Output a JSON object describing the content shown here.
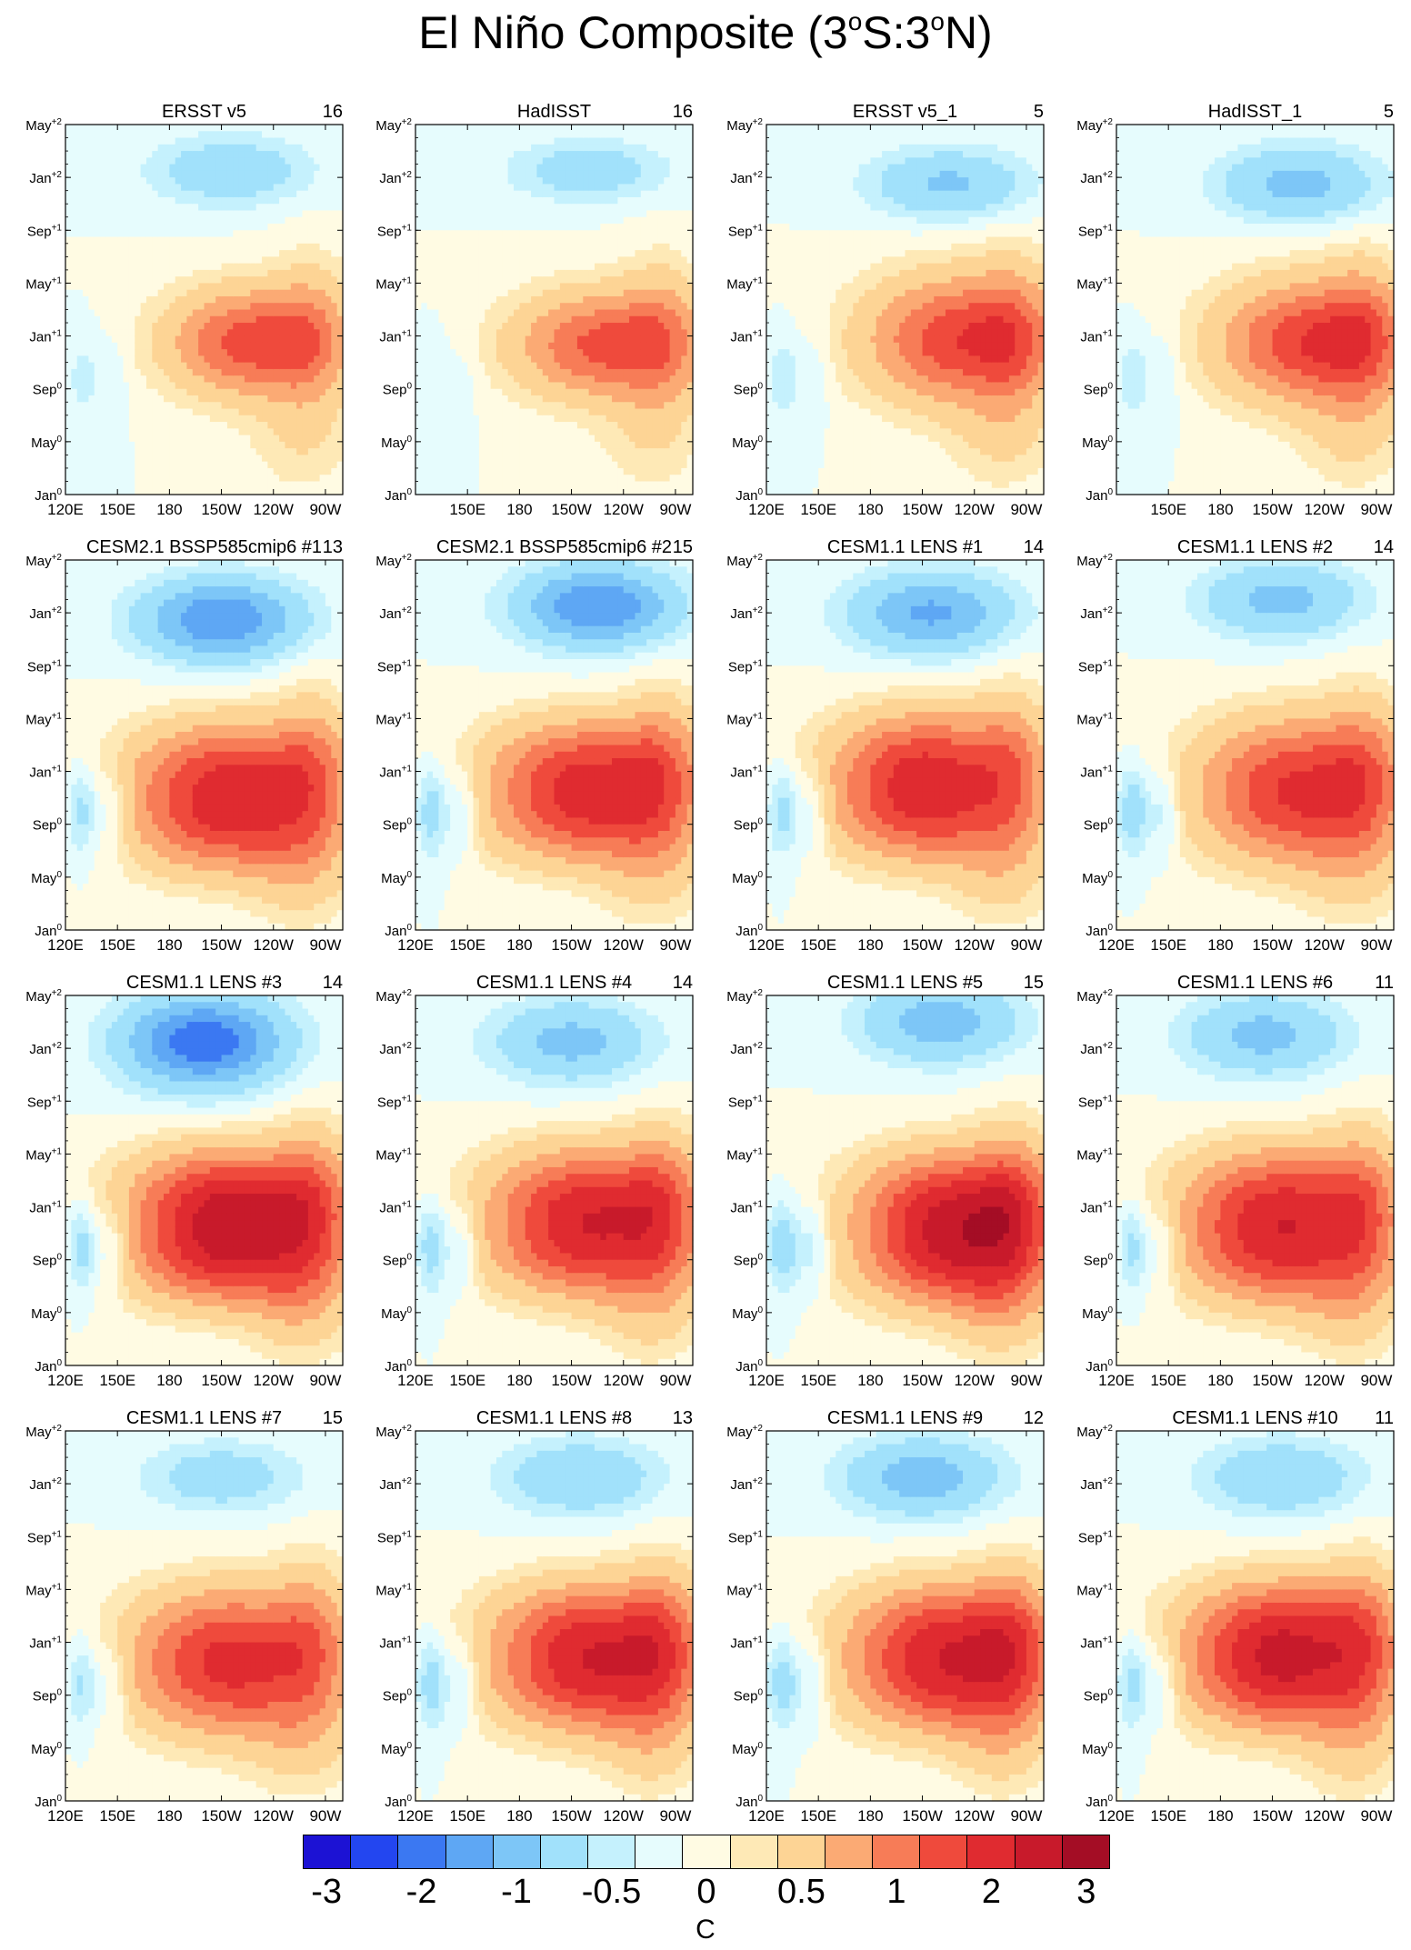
{
  "title_parts": {
    "prefix": "El Niño Composite (3",
    "deg1": "o",
    "mid": "S:3",
    "deg2": "o",
    "suffix": "N)"
  },
  "chart_data": {
    "type": "heatmap",
    "title": "El Niño Composite (3°S:3°N)",
    "units": "C",
    "x_axis": {
      "variable": "longitude",
      "range_deg_east": [
        120,
        280
      ],
      "ticks": [
        {
          "label": "120E",
          "lon": 120
        },
        {
          "label": "150E",
          "lon": 150
        },
        {
          "label": "180",
          "lon": 180
        },
        {
          "label": "150W",
          "lon": 210
        },
        {
          "label": "120W",
          "lon": 240
        },
        {
          "label": "90W",
          "lon": 270
        }
      ]
    },
    "y_axis": {
      "variable": "time",
      "range_months": [
        0,
        28
      ],
      "ticks": [
        {
          "label": "Jan",
          "sup": "0",
          "month": 0
        },
        {
          "label": "May",
          "sup": "0",
          "month": 4
        },
        {
          "label": "Sep",
          "sup": "0",
          "month": 8
        },
        {
          "label": "Jan",
          "sup": "+1",
          "month": 12
        },
        {
          "label": "May",
          "sup": "+1",
          "month": 16
        },
        {
          "label": "Sep",
          "sup": "+1",
          "month": 20
        },
        {
          "label": "Jan",
          "sup": "+2",
          "month": 24
        },
        {
          "label": "May",
          "sup": "+2",
          "month": 28
        }
      ]
    },
    "colorbar": {
      "colors": [
        "#1c12d4",
        "#2346f0",
        "#3b78f2",
        "#5ea7f4",
        "#7dc6f7",
        "#a1e1fb",
        "#c5f1fd",
        "#e6fcfd",
        "#fffbe3",
        "#fee9b6",
        "#fdd495",
        "#fbaa74",
        "#f77c57",
        "#ef4a3c",
        "#e02b30",
        "#c81a2b",
        "#a40d25"
      ],
      "labels": [
        {
          "text": "-3",
          "boundary": 1
        },
        {
          "text": "-2",
          "boundary": 3
        },
        {
          "text": "-1",
          "boundary": 5
        },
        {
          "text": "-0.5",
          "boundary": 7
        },
        {
          "text": "0",
          "boundary": 9
        },
        {
          "text": "0.5",
          "boundary": 11
        },
        {
          "text": "1",
          "boundary": 13
        },
        {
          "text": "2",
          "boundary": 15
        },
        {
          "text": "3",
          "boundary": 17
        }
      ]
    },
    "panels": [
      {
        "name": "ERSST v5",
        "count": "16",
        "peak": 2.3,
        "lon_center": 228,
        "month_center": 11.5,
        "lon_width": 48,
        "month_width": 4.0,
        "cold_peak": -0.9,
        "cold_lon": 215,
        "cold_month": 24.5,
        "cold_extent": 2.6,
        "west_strength": 0.4,
        "sharp": 1.0
      },
      {
        "name": "HadISST",
        "count": "16",
        "peak": 2.2,
        "lon_center": 230,
        "month_center": 11.3,
        "lon_width": 52,
        "month_width": 4.0,
        "cold_peak": -0.8,
        "cold_lon": 220,
        "cold_month": 24.5,
        "cold_extent": 2.3,
        "west_strength": 0.3,
        "sharp": 1.0
      },
      {
        "name": "ERSST v5_1",
        "count": "5",
        "peak": 2.4,
        "lon_center": 232,
        "month_center": 11.7,
        "lon_width": 54,
        "month_width": 4.8,
        "cold_peak": -1.1,
        "cold_lon": 225,
        "cold_month": 23.5,
        "cold_extent": 2.6,
        "west_strength": 0.5,
        "sharp": 1.0
      },
      {
        "name": "HadISST_1",
        "count": "5",
        "peak": 2.5,
        "lon_center": 234,
        "month_center": 11.5,
        "lon_width": 54,
        "month_width": 4.6,
        "cold_peak": -1.2,
        "cold_lon": 225,
        "cold_month": 23.5,
        "cold_extent": 2.8,
        "west_strength": 0.5,
        "sharp": 1.0
      },
      {
        "name": "CESM2.1 BSSP585cmip6 #1",
        "count": "13",
        "peak": 2.9,
        "lon_center": 215,
        "month_center": 10.0,
        "lon_width": 58,
        "month_width": 5.4,
        "cold_peak": -2.0,
        "cold_lon": 210,
        "cold_month": 23.5,
        "cold_extent": 3.0,
        "west_strength": 1.0,
        "sharp": 1.2
      },
      {
        "name": "CESM2.1 BSSP585cmip6 #2",
        "count": "15",
        "peak": 2.8,
        "lon_center": 220,
        "month_center": 10.5,
        "lon_width": 58,
        "month_width": 5.2,
        "cold_peak": -2.0,
        "cold_lon": 225,
        "cold_month": 24.5,
        "cold_extent": 3.0,
        "west_strength": 1.0,
        "sharp": 1.2
      },
      {
        "name": "CESM1.1 LENS #1",
        "count": "14",
        "peak": 2.9,
        "lon_center": 212,
        "month_center": 10.8,
        "lon_width": 55,
        "month_width": 5.4,
        "cold_peak": -1.6,
        "cold_lon": 215,
        "cold_month": 24.0,
        "cold_extent": 3.0,
        "west_strength": 1.0,
        "sharp": 1.2
      },
      {
        "name": "CESM1.1 LENS #2",
        "count": "14",
        "peak": 2.6,
        "lon_center": 225,
        "month_center": 10.5,
        "lon_width": 58,
        "month_width": 5.4,
        "cold_peak": -1.2,
        "cold_lon": 215,
        "cold_month": 25.0,
        "cold_extent": 2.8,
        "west_strength": 1.0,
        "sharp": 1.1
      },
      {
        "name": "CESM1.1 LENS #3",
        "count": "14",
        "peak": 3.4,
        "lon_center": 215,
        "month_center": 10.5,
        "lon_width": 58,
        "month_width": 5.6,
        "cold_peak": -2.4,
        "cold_lon": 200,
        "cold_month": 24.5,
        "cold_extent": 3.4,
        "west_strength": 1.1,
        "sharp": 1.3
      },
      {
        "name": "CESM1.1 LENS #4",
        "count": "14",
        "peak": 3.0,
        "lon_center": 220,
        "month_center": 10.8,
        "lon_width": 58,
        "month_width": 5.4,
        "cold_peak": -1.2,
        "cold_lon": 210,
        "cold_month": 24.5,
        "cold_extent": 3.0,
        "west_strength": 1.0,
        "sharp": 1.2
      },
      {
        "name": "CESM1.1 LENS #5",
        "count": "15",
        "peak": 3.3,
        "lon_center": 228,
        "month_center": 10.3,
        "lon_width": 55,
        "month_width": 5.6,
        "cold_peak": -1.3,
        "cold_lon": 220,
        "cold_month": 26.0,
        "cold_extent": 3.0,
        "west_strength": 1.0,
        "sharp": 1.2
      },
      {
        "name": "CESM1.1 LENS #6",
        "count": "11",
        "peak": 3.0,
        "lon_center": 215,
        "month_center": 10.5,
        "lon_width": 58,
        "month_width": 5.6,
        "cold_peak": -1.2,
        "cold_lon": 205,
        "cold_month": 25.0,
        "cold_extent": 3.0,
        "west_strength": 1.0,
        "sharp": 1.2
      },
      {
        "name": "CESM1.1 LENS #7",
        "count": "15",
        "peak": 2.7,
        "lon_center": 215,
        "month_center": 10.5,
        "lon_width": 58,
        "month_width": 5.4,
        "cold_peak": -0.8,
        "cold_lon": 210,
        "cold_month": 24.5,
        "cold_extent": 2.6,
        "west_strength": 0.9,
        "sharp": 1.1
      },
      {
        "name": "CESM1.1 LENS #8",
        "count": "13",
        "peak": 3.0,
        "lon_center": 222,
        "month_center": 10.8,
        "lon_width": 58,
        "month_width": 5.4,
        "cold_peak": -1.0,
        "cold_lon": 215,
        "cold_month": 24.5,
        "cold_extent": 2.8,
        "west_strength": 1.0,
        "sharp": 1.2
      },
      {
        "name": "CESM1.1 LENS #9",
        "count": "12",
        "peak": 3.0,
        "lon_center": 225,
        "month_center": 10.8,
        "lon_width": 58,
        "month_width": 5.4,
        "cold_peak": -1.3,
        "cold_lon": 210,
        "cold_month": 24.5,
        "cold_extent": 2.9,
        "west_strength": 1.0,
        "sharp": 1.2
      },
      {
        "name": "CESM1.1 LENS #10",
        "count": "11",
        "peak": 3.2,
        "lon_center": 215,
        "month_center": 11.0,
        "lon_width": 56,
        "month_width": 5.4,
        "cold_peak": -1.0,
        "cold_lon": 215,
        "cold_month": 24.5,
        "cold_extent": 2.8,
        "west_strength": 1.0,
        "sharp": 1.2
      }
    ]
  }
}
